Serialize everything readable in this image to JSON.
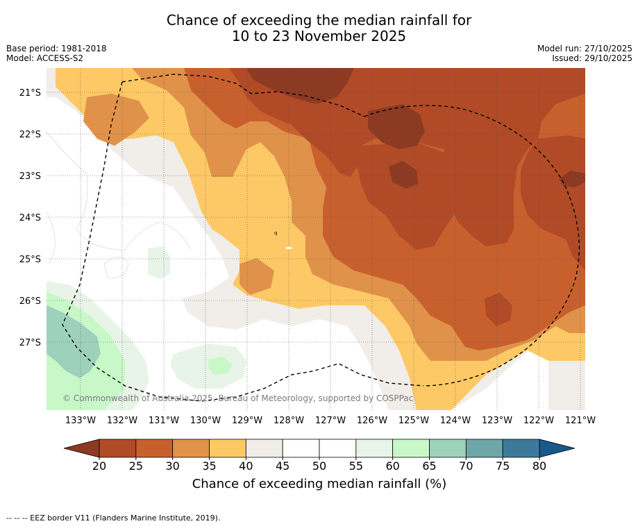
{
  "title": {
    "line1": "Chance of exceeding the median rainfall for",
    "line2": "10 to 23 November 2025"
  },
  "meta_left": {
    "base_period": "Base period: 1981-2018",
    "model": "Model: ACCESS-S2"
  },
  "meta_right": {
    "model_run": "Model run: 27/10/2025",
    "issued": "Issued: 29/10/2025"
  },
  "map": {
    "lat_labels": [
      "21°S",
      "22°S",
      "23°S",
      "24°S",
      "25°S",
      "26°S",
      "27°S"
    ],
    "lon_labels": [
      "133°W",
      "132°W",
      "131°W",
      "130°W",
      "129°W",
      "128°W",
      "127°W",
      "126°W",
      "125°W",
      "124°W",
      "123°W",
      "122°W",
      "121°W"
    ],
    "credit": "© Commonwealth of Australia 2025, Bureau of Meteorology, supported by COSPPac"
  },
  "colorbar": {
    "ticks": [
      "20",
      "25",
      "30",
      "35",
      "40",
      "45",
      "50",
      "55",
      "60",
      "65",
      "70",
      "75",
      "80"
    ],
    "colors": [
      "#b04a27",
      "#c8602e",
      "#e0924a",
      "#fdc966",
      "#f1ede8",
      "#ffffff",
      "#ffffff",
      "#e8f4e8",
      "#c8f8c8",
      "#9ed1bc",
      "#6fa6a8",
      "#3d7a9a"
    ],
    "under_color": "#8c3a22",
    "over_color": "#155a8a",
    "label": "Chance of exceeding median rainfall (%)"
  },
  "footnote": "--  --  -- EEZ border V11 (Flanders Marine Institute, 2019)."
}
